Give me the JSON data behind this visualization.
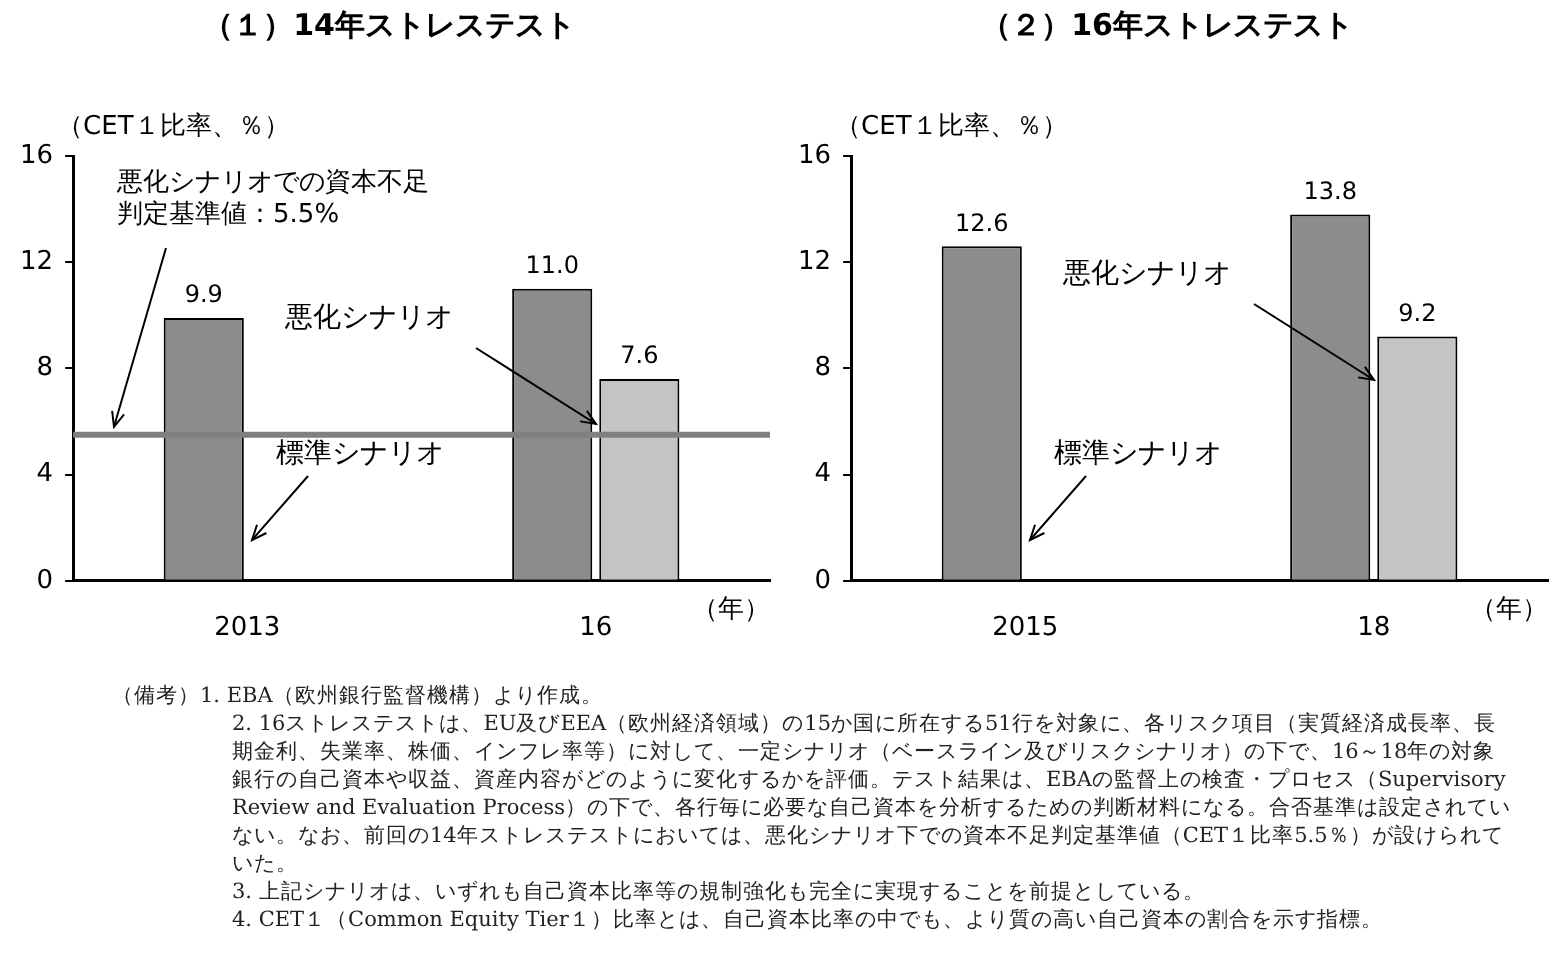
{
  "chart_data": [
    {
      "type": "bar",
      "title": "（１）14年ストレステスト",
      "ylabel": "（CET１比率、％）",
      "xlabel": "（年）",
      "categories": [
        "2013",
        "16"
      ],
      "series": [
        {
          "name": "標準シナリオ",
          "color": "#8c8c8c",
          "values": [
            9.9,
            11.0
          ],
          "value_labels": [
            "9.9",
            "11.0"
          ]
        },
        {
          "name": "悪化シナリオ",
          "color": "#c4c4c4",
          "values": [
            null,
            7.6
          ],
          "value_labels": [
            null,
            "7.6"
          ]
        }
      ],
      "ylim": [
        0,
        16
      ],
      "yticks": [
        0,
        4,
        8,
        12,
        16
      ],
      "grid": false,
      "legend": false,
      "ref_lines": [
        {
          "axis": "y",
          "value": 5.5,
          "label": "悪化シナリオでの資本不足判定基準値：5.5%",
          "color": "#808080"
        }
      ],
      "annotations": [
        "（備考）1. EBA（欧州銀行監督機構）より作成。",
        "2. 16ストレステストは、EU及びEEA（欧州経済領域）の15か国に所在する51行を対象に、各リスク項目（実質経済成長率、長期金利、失業率、株価、インフレ率等）に対して、一定シナリオ（ベースライン及びリスクシナリオ）の下で、16～18年の対象銀行の自己資本や収益、資産内容がどのように変化するかを評価。テスト結果は、EBAの監督上の検査・プロセス（Supervisory Review and Evaluation Process）の下で、各行毎に必要な自己資本を分析するための判断材料になる。合否基準は設定されていない。なお、前回の14年ストレステストにおいては、悪化シナリオ下での資本不足判定基準値（CET１比率5.5％）が設けられていた。",
        "3. 上記シナリオは、いずれも自己資本比率等の規制強化も完全に実現することを前提としている。",
        "4. CET１（Common Equity Tier１）比率とは、自己資本比率の中でも、より質の高い自己資本の割合を示す指標。"
      ]
    },
    {
      "type": "bar",
      "title": "（２）16年ストレステスト",
      "ylabel": "（CET１比率、％）",
      "xlabel": "（年）",
      "categories": [
        "2015",
        "18"
      ],
      "series": [
        {
          "name": "標準シナリオ",
          "color": "#8c8c8c",
          "values": [
            12.6,
            13.8
          ],
          "value_labels": [
            "12.6",
            "13.8"
          ]
        },
        {
          "name": "悪化シナリオ",
          "color": "#c4c4c4",
          "values": [
            null,
            9.2
          ],
          "value_labels": [
            null,
            "9.2"
          ]
        }
      ],
      "ylim": [
        0,
        16
      ],
      "yticks": [
        0,
        4,
        8,
        12,
        16
      ],
      "grid": false,
      "legend": false
    }
  ]
}
